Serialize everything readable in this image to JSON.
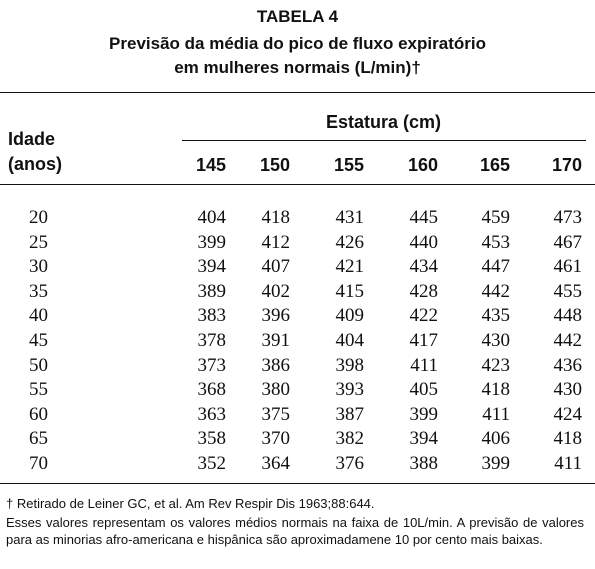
{
  "table": {
    "label": "TABELA 4",
    "title_line1": "Previsão da média do pico de fluxo expiratório",
    "title_line2": "em mulheres normais (L/min)†",
    "row_header_line1": "Idade",
    "row_header_line2": "(anos)",
    "column_group_header": "Estatura (cm)",
    "columns": [
      "145",
      "150",
      "155",
      "160",
      "165",
      "170"
    ],
    "rows": [
      {
        "age": "20",
        "values": [
          "404",
          "418",
          "431",
          "445",
          "459",
          "473"
        ]
      },
      {
        "age": "25",
        "values": [
          "399",
          "412",
          "426",
          "440",
          "453",
          "467"
        ]
      },
      {
        "age": "30",
        "values": [
          "394",
          "407",
          "421",
          "434",
          "447",
          "461"
        ]
      },
      {
        "age": "35",
        "values": [
          "389",
          "402",
          "415",
          "428",
          "442",
          "455"
        ]
      },
      {
        "age": "40",
        "values": [
          "383",
          "396",
          "409",
          "422",
          "435",
          "448"
        ]
      },
      {
        "age": "45",
        "values": [
          "378",
          "391",
          "404",
          "417",
          "430",
          "442"
        ]
      },
      {
        "age": "50",
        "values": [
          "373",
          "386",
          "398",
          "411",
          "423",
          "436"
        ]
      },
      {
        "age": "55",
        "values": [
          "368",
          "380",
          "393",
          "405",
          "418",
          "430"
        ]
      },
      {
        "age": "60",
        "values": [
          "363",
          "375",
          "387",
          "399",
          "411",
          "424"
        ]
      },
      {
        "age": "65",
        "values": [
          "358",
          "370",
          "382",
          "394",
          "406",
          "418"
        ]
      },
      {
        "age": "70",
        "values": [
          "352",
          "364",
          "376",
          "388",
          "399",
          "411"
        ]
      }
    ]
  },
  "footnotes": {
    "source": "† Retirado de Leiner GC, et al. Am Rev Respir Dis 1963;88:644.",
    "note": "Esses valores representam os valores médios normais na faixa de 10L/min. A previsão de valores para as minorias afro-americana e hispânica são aproximadamene 10 por cento mais baixas."
  }
}
